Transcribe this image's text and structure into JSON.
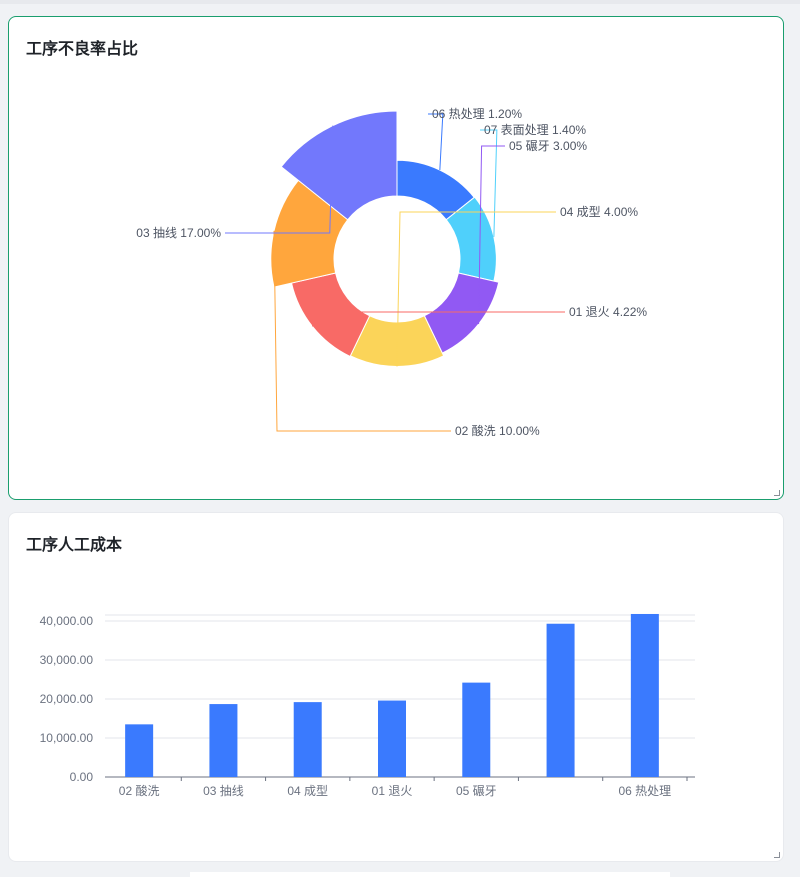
{
  "cards": {
    "defect": {
      "title": "工序不良率占比"
    },
    "labor": {
      "title": "工序人工成本"
    }
  },
  "chart_data": [
    {
      "type": "pie",
      "variant": "donut",
      "title": "工序不良率占比",
      "slices": [
        {
          "name": "06 热处理",
          "label": "06 热处理 1.20%",
          "value": 1.2,
          "color": "#3a7afe"
        },
        {
          "name": "07 表面处理",
          "label": "07 表面处理 1.40%",
          "value": 1.4,
          "color": "#4fd0fb"
        },
        {
          "name": "05 碾牙",
          "label": "05 碾牙 3.00%",
          "value": 3.0,
          "color": "#9159f3"
        },
        {
          "name": "04 成型",
          "label": "04 成型 4.00%",
          "value": 4.0,
          "color": "#fbd459"
        },
        {
          "name": "01 退火",
          "label": "01 退火 4.22%",
          "value": 4.22,
          "color": "#f86a66"
        },
        {
          "name": "02 酸洗",
          "label": "02 酸洗 10.00%",
          "value": 10.0,
          "color": "#ffa63d"
        },
        {
          "name": "03 抽线",
          "label": "03 抽线 17.00%",
          "value": 17.0,
          "color": "#7278fc"
        }
      ]
    },
    {
      "type": "bar",
      "title": "工序人工成本",
      "categories": [
        "02 酸洗",
        "03 抽线",
        "04 成型",
        "01 退火",
        "05 碾牙",
        "",
        "06 热处理"
      ],
      "values": [
        13500,
        18700,
        19200,
        19600,
        24200,
        39300,
        41800
      ],
      "ylim": [
        0,
        40000
      ],
      "yticks": [
        "0.00",
        "10,000.00",
        "20,000.00",
        "30,000.00",
        "40,000.00"
      ],
      "bar_color": "#3a7afe",
      "grid": true
    }
  ]
}
